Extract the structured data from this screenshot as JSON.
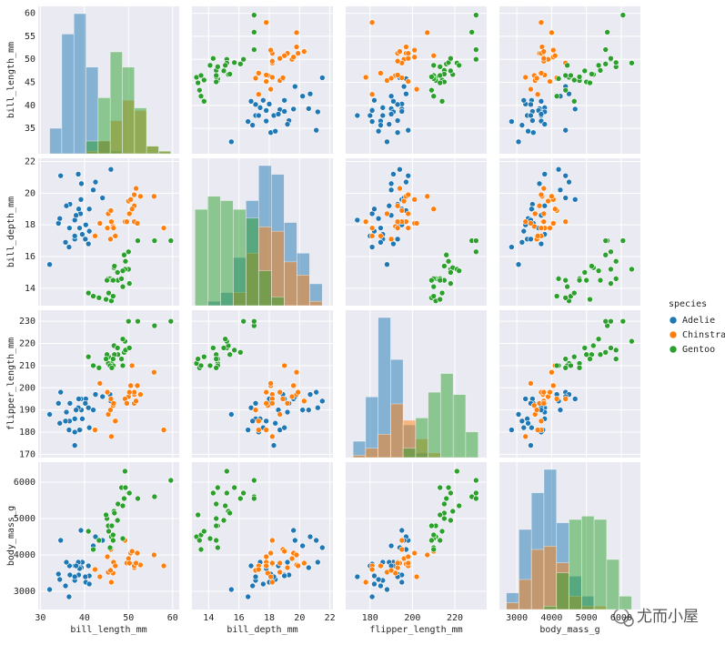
{
  "chart_data": {
    "type": "pairplot",
    "legend_title": "species",
    "watermark": "尤而小屋",
    "variables": [
      {
        "name": "bill_length_mm",
        "lim": [
          29.5,
          61.5
        ],
        "xticks": [
          30,
          40,
          50,
          60
        ],
        "yticks": [
          35,
          40,
          45,
          50,
          55,
          60
        ],
        "bins": [
          32.1,
          34.85,
          37.6,
          40.35,
          43.1,
          45.85,
          48.6,
          51.35,
          54.1,
          56.85,
          59.6
        ]
      },
      {
        "name": "bill_depth_mm",
        "lim": [
          12.9,
          22.2
        ],
        "xticks": [
          14,
          16,
          18,
          20,
          22
        ],
        "yticks": [
          14,
          16,
          18,
          20,
          22
        ],
        "bins": [
          13.1,
          13.94,
          14.78,
          15.62,
          16.46,
          17.3,
          18.14,
          18.98,
          19.82,
          20.66,
          21.5
        ]
      },
      {
        "name": "flipper_length_mm",
        "lim": [
          168.5,
          235
        ],
        "xticks": [
          180,
          200,
          220
        ],
        "yticks": [
          170,
          180,
          190,
          200,
          210,
          220,
          230
        ],
        "bins": [
          172,
          177.9,
          183.8,
          189.7,
          195.6,
          201.5,
          207.4,
          213.3,
          219.2,
          225.1,
          231
        ]
      },
      {
        "name": "body_mass_g",
        "lim": [
          2500,
          6550
        ],
        "xticks": [
          3000,
          4000,
          5000,
          6000
        ],
        "yticks": [
          3000,
          4000,
          5000,
          6000
        ],
        "bins": [
          2700,
          3060,
          3420,
          3780,
          4140,
          4500,
          4860,
          5220,
          5580,
          5940,
          6300
        ]
      }
    ],
    "series": [
      {
        "name": "Adelie",
        "color": "#1f77b4",
        "hist": [
          [
            10,
            47,
            55,
            34,
            5,
            1,
            0,
            0,
            0,
            0
          ],
          [
            0,
            1,
            3,
            11,
            24,
            32,
            30,
            19,
            12,
            5
          ],
          [
            7,
            26,
            60,
            42,
            14,
            2,
            0,
            0,
            0,
            0
          ],
          [
            5,
            24,
            35,
            42,
            26,
            10,
            4,
            0,
            0,
            0
          ]
        ],
        "points": [
          [
            39.1,
            18.7,
            181,
            3750
          ],
          [
            39.5,
            17.4,
            186,
            3800
          ],
          [
            40.3,
            18.0,
            195,
            3250
          ],
          [
            36.7,
            19.3,
            193,
            3450
          ],
          [
            39.3,
            20.6,
            190,
            3650
          ],
          [
            38.9,
            17.8,
            181,
            3625
          ],
          [
            39.2,
            19.6,
            195,
            4675
          ],
          [
            34.1,
            18.1,
            193,
            3475
          ],
          [
            42.0,
            20.2,
            190,
            4250
          ],
          [
            37.8,
            17.1,
            186,
            3300
          ],
          [
            37.8,
            17.3,
            180,
            3700
          ],
          [
            41.1,
            17.6,
            182,
            3200
          ],
          [
            38.6,
            21.2,
            191,
            3800
          ],
          [
            34.6,
            21.1,
            198,
            4400
          ],
          [
            36.6,
            17.8,
            185,
            3700
          ],
          [
            38.7,
            19.0,
            195,
            3450
          ],
          [
            42.5,
            20.7,
            197,
            4500
          ],
          [
            34.4,
            18.4,
            184,
            3325
          ],
          [
            46.0,
            21.5,
            194,
            4200
          ],
          [
            37.8,
            18.3,
            174,
            3400
          ],
          [
            35.9,
            19.2,
            189,
            3800
          ],
          [
            32.1,
            15.5,
            188,
            3050
          ],
          [
            41.1,
            19.0,
            182,
            3425
          ],
          [
            35.7,
            16.9,
            185,
            3150
          ],
          [
            40.2,
            17.1,
            193,
            3400
          ],
          [
            44.1,
            19.7,
            196,
            4400
          ],
          [
            36.5,
            16.6,
            181,
            2850
          ],
          [
            40.9,
            16.8,
            191,
            3700
          ],
          [
            38.1,
            18.6,
            190,
            3700
          ],
          [
            45.8,
            18.9,
            197,
            4150
          ]
        ]
      },
      {
        "name": "Chinstrap",
        "color": "#ff7f0e",
        "hist": [
          [
            0,
            0,
            0,
            1,
            5,
            13,
            21,
            17,
            3,
            1
          ],
          [
            0,
            0,
            0,
            3,
            12,
            18,
            17,
            10,
            7,
            1
          ],
          [
            1,
            4,
            10,
            23,
            16,
            8,
            2,
            0,
            0,
            0
          ],
          [
            2,
            9,
            18,
            19,
            14,
            4,
            1,
            1,
            0,
            0
          ]
        ],
        "points": [
          [
            46.5,
            17.9,
            192,
            3500
          ],
          [
            50.0,
            19.5,
            196,
            3900
          ],
          [
            51.3,
            19.2,
            193,
            3650
          ],
          [
            45.4,
            18.7,
            188,
            3525
          ],
          [
            52.7,
            19.8,
            197,
            3725
          ],
          [
            45.2,
            17.8,
            198,
            3950
          ],
          [
            46.1,
            18.2,
            178,
            3250
          ],
          [
            51.3,
            18.2,
            197,
            3750
          ],
          [
            46.0,
            18.9,
            195,
            4150
          ],
          [
            51.3,
            19.9,
            198,
            3700
          ],
          [
            46.6,
            17.8,
            193,
            3800
          ],
          [
            51.7,
            20.3,
            194,
            3775
          ],
          [
            47.0,
            17.3,
            185,
            3700
          ],
          [
            52.0,
            18.1,
            201,
            4050
          ],
          [
            45.9,
            17.1,
            190,
            3575
          ],
          [
            50.5,
            19.6,
            201,
            4050
          ],
          [
            58.0,
            17.8,
            181,
            3700
          ],
          [
            49.2,
            18.2,
            195,
            4400
          ],
          [
            42.4,
            17.3,
            181,
            3600
          ],
          [
            55.8,
            19.8,
            207,
            4000
          ],
          [
            43.5,
            18.1,
            202,
            3400
          ],
          [
            49.6,
            18.2,
            193,
            3775
          ],
          [
            50.8,
            19.0,
            210,
            4100
          ],
          [
            50.2,
            18.7,
            198,
            3775
          ]
        ]
      },
      {
        "name": "Gentoo",
        "color": "#2ca02c",
        "hist": [
          [
            0,
            0,
            0,
            5,
            22,
            40,
            34,
            18,
            3,
            1
          ],
          [
            22,
            25,
            24,
            22,
            20,
            8,
            2,
            0,
            0,
            0
          ],
          [
            0,
            0,
            0,
            0,
            4,
            17,
            28,
            36,
            27,
            11
          ],
          [
            0,
            0,
            0,
            1,
            11,
            27,
            28,
            27,
            15,
            4
          ]
        ],
        "points": [
          [
            46.1,
            13.2,
            211,
            4500
          ],
          [
            50.0,
            16.3,
            230,
            5700
          ],
          [
            48.7,
            14.1,
            210,
            4450
          ],
          [
            50.0,
            15.2,
            218,
            5700
          ],
          [
            47.6,
            14.5,
            215,
            5400
          ],
          [
            46.5,
            13.5,
            210,
            4550
          ],
          [
            45.4,
            14.6,
            211,
            4800
          ],
          [
            46.7,
            15.3,
            219,
            5200
          ],
          [
            43.3,
            13.4,
            209,
            4400
          ],
          [
            46.8,
            15.4,
            215,
            5150
          ],
          [
            40.9,
            13.7,
            214,
            4650
          ],
          [
            49.0,
            16.1,
            216,
            5550
          ],
          [
            45.5,
            13.7,
            214,
            4650
          ],
          [
            48.4,
            14.6,
            213,
            5850
          ],
          [
            45.8,
            14.6,
            210,
            4200
          ],
          [
            49.3,
            15.7,
            217,
            5850
          ],
          [
            42.0,
            13.5,
            210,
            4150
          ],
          [
            49.2,
            15.2,
            221,
            6300
          ],
          [
            46.2,
            14.5,
            209,
            4800
          ],
          [
            48.7,
            15.1,
            222,
            5350
          ],
          [
            50.2,
            14.3,
            218,
            5700
          ],
          [
            45.1,
            14.5,
            215,
            5000
          ],
          [
            46.5,
            14.5,
            213,
            4400
          ],
          [
            59.6,
            17.0,
            230,
            6050
          ],
          [
            55.9,
            17.0,
            228,
            5600
          ],
          [
            44.9,
            13.3,
            213,
            5100
          ],
          [
            52.1,
            17.0,
            230,
            5550
          ],
          [
            47.5,
            15.0,
            218,
            4950
          ]
        ]
      }
    ]
  }
}
